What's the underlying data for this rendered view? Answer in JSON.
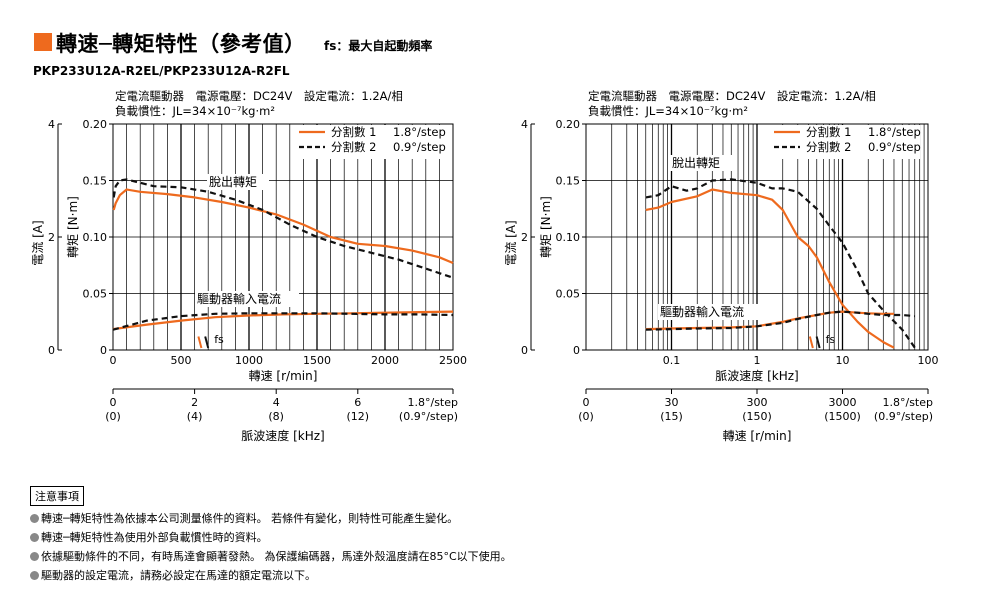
{
  "header": {
    "title": "轉速─轉矩特性（參考值）",
    "subtitle": "fs：最大自起動頻率",
    "model": "PKP233U12A-R2EL/PKP233U12A-R2FL",
    "accent_color": "#ee6a1e"
  },
  "chart_data": [
    {
      "type": "line",
      "conditions_line1": "定電流驅動器　電源電壓：DC24V　設定電流：1.2A/相",
      "conditions_line2": "負載慣性：JL=34×10⁻⁷kg·m²",
      "xlabel": "轉速 [r/min]",
      "ylabel": "轉矩 [N·m]",
      "y2label": "電流 [A]",
      "x_scale": "linear",
      "xlim": [
        0,
        2500
      ],
      "ylim": [
        0,
        0.2
      ],
      "y2lim": [
        0,
        4
      ],
      "x_ticks": [
        0,
        500,
        1000,
        1500,
        2000,
        2500
      ],
      "x_tick_labels": [
        "0",
        "500",
        "1000",
        "1500",
        "2000",
        "2500"
      ],
      "y_ticks": [
        0,
        0.05,
        0.1,
        0.15,
        0.2
      ],
      "y_tick_labels": [
        "0",
        "0.05",
        "0.10",
        "0.15",
        "0.20"
      ],
      "y2_ticks": [
        0,
        2,
        4
      ],
      "y2_tick_labels": [
        "0",
        "2",
        "4"
      ],
      "grid": true,
      "legend": [
        {
          "label": "分割數 1",
          "value": "1.8°/step",
          "color": "#ee6a1e",
          "dash": "solid"
        },
        {
          "label": "分割數 2",
          "value": "0.9°/step",
          "color": "#111111",
          "dash": "dashed"
        }
      ],
      "legend_position": "top-right",
      "annotations": {
        "pullout": "脫出轉矩",
        "current": "驅動器輸入電流",
        "fs": "fs"
      },
      "fs_x": [
        650,
        700
      ],
      "series": [
        {
          "name": "分割數 1",
          "kind": "torque",
          "x": [
            5,
            20,
            50,
            100,
            200,
            400,
            600,
            800,
            1000,
            1200,
            1400,
            1600,
            1800,
            2000,
            2200,
            2400,
            2500
          ],
          "y": [
            0.124,
            0.13,
            0.137,
            0.142,
            0.14,
            0.138,
            0.135,
            0.131,
            0.126,
            0.12,
            0.111,
            0.1,
            0.094,
            0.092,
            0.088,
            0.082,
            0.077
          ]
        },
        {
          "name": "分割數 2",
          "kind": "torque",
          "x": [
            5,
            20,
            50,
            100,
            200,
            300,
            500,
            700,
            900,
            1100,
            1300,
            1500,
            1700,
            1900,
            2100,
            2300,
            2500
          ],
          "y": [
            0.135,
            0.145,
            0.15,
            0.151,
            0.148,
            0.145,
            0.144,
            0.14,
            0.133,
            0.124,
            0.111,
            0.1,
            0.092,
            0.086,
            0.08,
            0.072,
            0.064
          ]
        },
        {
          "name": "分割數 1",
          "kind": "current",
          "x": [
            0,
            250,
            500,
            750,
            1000,
            1250,
            1500,
            1750,
            2000,
            2250,
            2500
          ],
          "y": [
            0.37,
            0.45,
            0.52,
            0.58,
            0.61,
            0.63,
            0.64,
            0.65,
            0.66,
            0.67,
            0.68
          ]
        },
        {
          "name": "分割數 2",
          "kind": "current",
          "x": [
            0,
            250,
            500,
            750,
            1000,
            1250,
            1500,
            1750,
            2000,
            2250,
            2500
          ],
          "y": [
            0.36,
            0.52,
            0.6,
            0.64,
            0.65,
            0.65,
            0.65,
            0.64,
            0.63,
            0.63,
            0.62
          ]
        }
      ],
      "aux_axis": {
        "label": "脈波速度 [kHz]",
        "ticks": [
          {
            "top": "0",
            "bottom": "(0)",
            "at": 0
          },
          {
            "top": "2",
            "bottom": "(4)",
            "at": 600
          },
          {
            "top": "4",
            "bottom": "(8)",
            "at": 1200
          },
          {
            "top": "6",
            "bottom": "(12)",
            "at": 1800
          }
        ],
        "end_top": "1.8°/step",
        "end_bottom": "(0.9°/step)"
      }
    },
    {
      "type": "line",
      "conditions_line1": "定電流驅動器　電源電壓：DC24V　設定電流：1.2A/相",
      "conditions_line2": "負載慣性：JL=34×10⁻⁷kg·m²",
      "xlabel": "脈波速度 [kHz]",
      "ylabel": "轉矩 [N·m]",
      "y2label": "電流 [A]",
      "x_scale": "log",
      "xlim": [
        0.01,
        100
      ],
      "x_ticks": [
        0.1,
        1,
        10,
        100
      ],
      "x_tick_labels": [
        "0.1",
        "1",
        "10",
        "100"
      ],
      "ylim": [
        0,
        0.2
      ],
      "y2lim": [
        0,
        4
      ],
      "y_ticks": [
        0,
        0.05,
        0.1,
        0.15,
        0.2
      ],
      "y_tick_labels": [
        "0",
        "0.05",
        "0.10",
        "0.15",
        "0.20"
      ],
      "y2_ticks": [
        0,
        2,
        4
      ],
      "y2_tick_labels": [
        "0",
        "2",
        "4"
      ],
      "grid": true,
      "legend": [
        {
          "label": "分割數 1",
          "value": "1.8°/step",
          "color": "#ee6a1e",
          "dash": "solid"
        },
        {
          "label": "分割數 2",
          "value": "0.9°/step",
          "color": "#111111",
          "dash": "dashed"
        }
      ],
      "legend_position": "top-right",
      "annotations": {
        "pullout": "脫出轉矩",
        "current": "驅動器輸入電流",
        "fs": "fs"
      },
      "fs_x": [
        4.5,
        5.4
      ],
      "series": [
        {
          "name": "分割數 1",
          "kind": "torque",
          "x": [
            0.05,
            0.07,
            0.1,
            0.2,
            0.3,
            0.5,
            1,
            1.5,
            2,
            3,
            4,
            5,
            7,
            10,
            15,
            20,
            30,
            40
          ],
          "y": [
            0.124,
            0.126,
            0.131,
            0.136,
            0.142,
            0.139,
            0.137,
            0.133,
            0.124,
            0.1,
            0.092,
            0.082,
            0.06,
            0.04,
            0.025,
            0.016,
            0.007,
            0.002
          ]
        },
        {
          "name": "分割數 2",
          "kind": "torque",
          "x": [
            0.05,
            0.07,
            0.1,
            0.15,
            0.2,
            0.3,
            0.5,
            1,
            1.5,
            2,
            3,
            5,
            7,
            10,
            15,
            20,
            30,
            50,
            70
          ],
          "y": [
            0.135,
            0.137,
            0.145,
            0.141,
            0.143,
            0.15,
            0.151,
            0.148,
            0.143,
            0.143,
            0.14,
            0.125,
            0.11,
            0.095,
            0.07,
            0.05,
            0.035,
            0.018,
            0.002
          ]
        },
        {
          "name": "分割數 1",
          "kind": "current",
          "x": [
            0.05,
            0.1,
            0.2,
            0.5,
            1,
            2,
            3,
            5,
            7,
            10,
            15,
            20,
            30,
            40
          ],
          "y": [
            0.37,
            0.38,
            0.39,
            0.4,
            0.42,
            0.5,
            0.56,
            0.62,
            0.66,
            0.68,
            0.66,
            0.65,
            0.64,
            0.64
          ]
        },
        {
          "name": "分割數 2",
          "kind": "current",
          "x": [
            0.05,
            0.1,
            0.2,
            0.5,
            1,
            2,
            3,
            5,
            7,
            10,
            15,
            20,
            30,
            50,
            70
          ],
          "y": [
            0.36,
            0.37,
            0.38,
            0.39,
            0.42,
            0.48,
            0.55,
            0.62,
            0.66,
            0.68,
            0.66,
            0.64,
            0.62,
            0.62,
            0.6
          ]
        }
      ],
      "aux_axis": {
        "label": "轉速 [r/min]",
        "ticks": [
          {
            "top": "0",
            "bottom": "(0)",
            "at": 0.01
          },
          {
            "top": "30",
            "bottom": "(15)",
            "at": 0.1
          },
          {
            "top": "300",
            "bottom": "(150)",
            "at": 1
          },
          {
            "top": "3000",
            "bottom": "(1500)",
            "at": 10
          }
        ],
        "end_top": "1.8°/step",
        "end_bottom": "(0.9°/step)"
      }
    }
  ],
  "notes": {
    "title": "注意事項",
    "items": [
      "轉速─轉矩特性為依據本公司測量條件的資料。 若條件有變化，則特性可能產生變化。",
      "轉速─轉矩特性為使用外部負載慣性時的資料。",
      "依據驅動條件的不同，有時馬達會顯著發熱。 為保護編碼器，馬達外殼溫度請在85°C以下使用。",
      "驅動器的設定電流，請務必設定在馬達的額定電流以下。"
    ]
  }
}
